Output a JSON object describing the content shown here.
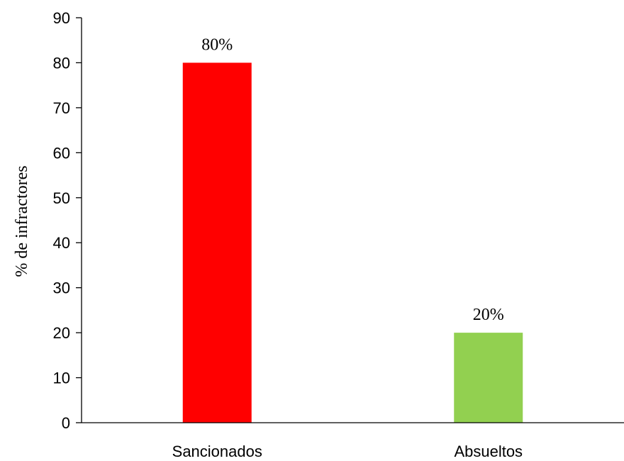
{
  "chart_data": {
    "type": "bar",
    "categories": [
      "Sancionados",
      "Absueltos"
    ],
    "values": [
      80,
      20
    ],
    "data_labels": [
      "80%",
      "20%"
    ],
    "colors": [
      "#ff0000",
      "#92d050"
    ],
    "title": "",
    "xlabel": "",
    "ylabel": "% de infractores",
    "ylim": [
      0,
      90
    ],
    "yticks": [
      "0",
      "10",
      "20",
      "30",
      "40",
      "50",
      "60",
      "70",
      "80",
      "90"
    ],
    "grid": false,
    "legend": "none"
  }
}
